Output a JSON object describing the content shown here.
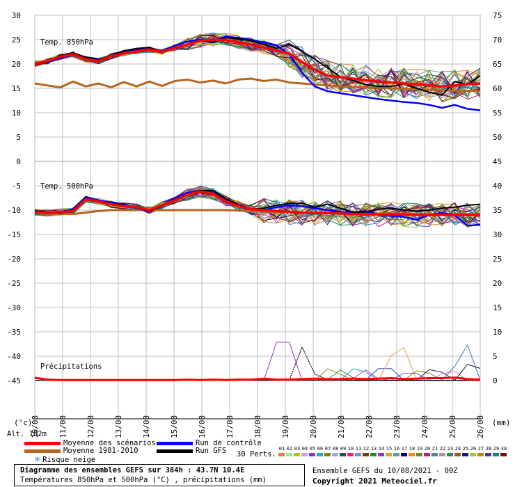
{
  "chart_data": {
    "type": "line",
    "title": "Diagramme des ensembles GEFS sur 384h : 43.7N 10.4E",
    "subtitle": "Températures 850hPa et 500hPa (°C) , précipitations (mm)",
    "x_labels": [
      "10/08",
      "11/08",
      "12/08",
      "13/08",
      "14/08",
      "15/08",
      "16/08",
      "17/08",
      "18/08",
      "19/08",
      "20/08",
      "21/08",
      "22/08",
      "23/08",
      "24/08",
      "25/08",
      "26/08"
    ],
    "x_unit": "(°c)",
    "x_unit_right": "(mm)",
    "y_left_ticks": [
      "30",
      "25",
      "20",
      "15",
      "10",
      "5",
      "0",
      "-5",
      "-10",
      "-15",
      "-20",
      "-25",
      "-30",
      "-35",
      "-40",
      "-45"
    ],
    "y_right_ticks": [
      "75",
      "70",
      "65",
      "60",
      "55",
      "50",
      "45",
      "40",
      "35",
      "30",
      "25",
      "20",
      "15",
      "10",
      "5",
      "0"
    ],
    "y_left_range": [
      -45,
      30
    ],
    "panel_labels": {
      "t850": "Temp. 850hPa",
      "t500": "Temp. 500hPa",
      "precip": "Précipitations"
    },
    "altitude": "Alt. 102m",
    "mean_850": [
      20.0,
      20.6,
      21.5,
      22.0,
      21.0,
      20.6,
      21.6,
      22.2,
      22.6,
      23.0,
      22.5,
      23.3,
      24.0,
      24.8,
      25.0,
      24.9,
      24.5,
      24.0,
      23.4,
      22.8,
      22.1,
      20.4,
      18.8,
      17.6,
      17.3,
      17.0,
      16.7,
      16.4,
      16.2,
      16.0,
      15.8,
      15.6,
      15.4,
      15.6,
      15.9,
      16.0
    ],
    "clim_850": [
      16.0,
      15.6,
      15.2,
      16.4,
      15.4,
      16.0,
      15.2,
      16.3,
      15.4,
      16.4,
      15.5,
      16.5,
      16.8,
      16.2,
      16.6,
      16.0,
      16.8,
      17.0,
      16.5,
      16.8,
      16.2,
      16.0,
      15.8,
      15.6,
      15.4,
      15.3,
      15.2,
      15.1,
      15.0,
      14.9,
      14.8,
      14.7,
      14.6,
      14.5,
      14.5,
      14.5
    ],
    "control_850": [
      20.0,
      20.4,
      21.2,
      22.0,
      21.4,
      21.0,
      21.5,
      22.6,
      23.0,
      23.0,
      22.6,
      23.8,
      24.6,
      25.0,
      24.8,
      25.6,
      25.4,
      25.0,
      24.4,
      23.8,
      22.0,
      18.2,
      15.4,
      14.4,
      14.0,
      13.6,
      13.2,
      12.8,
      12.5,
      12.2,
      12.0,
      11.6,
      11.0,
      11.6,
      10.8,
      10.5
    ],
    "gfs_850": [
      20.0,
      20.4,
      21.8,
      22.3,
      21.4,
      20.8,
      21.8,
      22.7,
      23.2,
      23.4,
      22.6,
      23.2,
      24.0,
      24.8,
      24.4,
      25.4,
      25.2,
      24.8,
      24.0,
      23.2,
      24.0,
      22.6,
      21.0,
      19.2,
      17.4,
      16.6,
      15.8,
      15.4,
      15.4,
      15.9,
      15.0,
      14.2,
      13.6,
      16.4,
      15.8,
      17.6
    ],
    "mean_500": [
      -10.4,
      -10.6,
      -10.4,
      -10.2,
      -7.8,
      -8.2,
      -8.8,
      -9.2,
      -9.4,
      -10.0,
      -9.0,
      -8.0,
      -6.8,
      -6.2,
      -6.6,
      -8.2,
      -9.2,
      -9.8,
      -10.0,
      -10.2,
      -10.4,
      -10.5,
      -10.6,
      -10.6,
      -10.7,
      -10.8,
      -10.8,
      -10.9,
      -10.9,
      -10.9,
      -11.0,
      -11.0,
      -11.0,
      -11.0,
      -11.0,
      -11.0
    ],
    "clim_500": [
      -10.6,
      -10.7,
      -10.8,
      -10.8,
      -10.5,
      -10.2,
      -10.0,
      -10.0,
      -10.0,
      -10.0,
      -10.0,
      -10.0,
      -10.0,
      -10.0,
      -10.0,
      -10.0,
      -10.1,
      -10.2,
      -10.3,
      -10.4,
      -10.4,
      -10.5,
      -10.5,
      -10.6,
      -10.6,
      -10.6,
      -10.7,
      -10.7,
      -10.7,
      -10.7,
      -10.8,
      -10.8,
      -10.8,
      -10.8,
      -10.8,
      -10.8
    ],
    "control_500": [
      -10.2,
      -10.6,
      -10.4,
      -9.8,
      -7.4,
      -8.0,
      -8.4,
      -8.8,
      -9.6,
      -10.2,
      -9.0,
      -7.6,
      -6.4,
      -6.0,
      -6.4,
      -7.8,
      -9.0,
      -9.8,
      -10.0,
      -9.4,
      -9.0,
      -9.2,
      -9.6,
      -10.0,
      -10.4,
      -10.6,
      -10.2,
      -11.0,
      -11.2,
      -11.4,
      -12.0,
      -11.0,
      -10.6,
      -11.0,
      -13.2,
      -13.0
    ],
    "gfs_500": [
      -10.2,
      -10.4,
      -10.6,
      -10.0,
      -7.6,
      -8.2,
      -8.6,
      -9.0,
      -9.4,
      -10.2,
      -9.2,
      -7.8,
      -6.8,
      -6.0,
      -6.0,
      -7.6,
      -9.0,
      -9.8,
      -9.6,
      -9.0,
      -8.6,
      -8.6,
      -9.4,
      -8.8,
      -9.6,
      -10.4,
      -10.4,
      -9.8,
      -9.6,
      -10.0,
      -10.2,
      -10.0,
      -9.6,
      -9.4,
      -9.0,
      -8.8
    ],
    "mean_precip": [
      0.6,
      0.2,
      0.1,
      0.1,
      0.1,
      0.1,
      0.1,
      0.1,
      0.1,
      0.1,
      0.1,
      0.1,
      0.2,
      0.1,
      0.2,
      0.1,
      0.2,
      0.2,
      0.4,
      0.2,
      0.2,
      0.3,
      0.4,
      0.3,
      0.3,
      0.4,
      0.3,
      0.4,
      0.5,
      0.3,
      0.4,
      0.5,
      0.5,
      0.6,
      0.3,
      0.2
    ],
    "gfs_precip": [
      0.4,
      0.1,
      0.1,
      0.1,
      0.1,
      0.1,
      0.1,
      0.1,
      0.1,
      0.1,
      0.1,
      0.1,
      0.1,
      0.1,
      0.1,
      0.1,
      0.1,
      0.1,
      0.1,
      0.1,
      0.1,
      0.1,
      0.1,
      0.1,
      0.1,
      0.0,
      0.0,
      0.0,
      0.0,
      0.0,
      0.0,
      0.0,
      0.0,
      0.0,
      0.0,
      0.0
    ],
    "gfs_precip_peak": {
      "x_index": 21.3,
      "value": 11.0
    },
    "precip_spikes": [
      {
        "x_index": 19.5,
        "value": 13.5,
        "color": "#9b30c8"
      },
      {
        "x_index": 23.3,
        "value": 3.2,
        "color": "#8b8b00"
      },
      {
        "x_index": 24.1,
        "value": 2.4,
        "color": "#2f8f2f"
      },
      {
        "x_index": 25.4,
        "value": 3.6,
        "color": "#20a0b0"
      },
      {
        "x_index": 26.0,
        "value": 2.2,
        "color": "#c040c0"
      },
      {
        "x_index": 27.5,
        "value": 4.2,
        "color": "#2050c0"
      },
      {
        "x_index": 28.6,
        "value": 10.2,
        "color": "#e0a040"
      },
      {
        "x_index": 29.5,
        "value": 2.6,
        "color": "#6a5acd"
      },
      {
        "x_index": 30.4,
        "value": 3.0,
        "color": "#808000"
      },
      {
        "x_index": 31.4,
        "value": 3.4,
        "color": "#202060"
      },
      {
        "x_index": 32.6,
        "value": 2.8,
        "color": "#ff69b4"
      },
      {
        "x_index": 33.8,
        "value": 8.8,
        "color": "#4169e1"
      },
      {
        "x_index": 34.4,
        "value": 5.0,
        "color": "#111111"
      }
    ],
    "ensemble_colors": [
      "#e87e3a",
      "#4a9f4a",
      "#b0c020",
      "#3050c8",
      "#8a2be2",
      "#20b2aa",
      "#808000",
      "#d2691e",
      "#2f4f4f",
      "#ff1493",
      "#6495ed",
      "#7b3f00",
      "#228b22",
      "#9932cc",
      "#daa520",
      "#5f9ea0",
      "#000080",
      "#ff8c00",
      "#6b8e23",
      "#c71585",
      "#4682b4",
      "#bc8f8f",
      "#2e8b57",
      "#a0522d",
      "#191970",
      "#9acd32",
      "#b8860b",
      "#483d8b",
      "#008b8b",
      "#8b0000"
    ]
  },
  "legend": {
    "mean": "Moyenne des scénarios",
    "clim": "Moyenne 1981-2010",
    "snow": "Risque neige",
    "control": "Run de contrôle",
    "gfs": "Run GFS",
    "mean_color": "#ff0000",
    "clim_color": "#b5651d",
    "control_color": "#0000ff",
    "gfs_color": "#000000"
  },
  "perturbations": {
    "label": "30 Perts.",
    "numbers": [
      "01",
      "02",
      "03",
      "04",
      "05",
      "06",
      "07",
      "08",
      "09",
      "10",
      "11",
      "12",
      "13",
      "14",
      "15",
      "16",
      "17",
      "18",
      "19",
      "20",
      "21",
      "22",
      "23",
      "24",
      "25",
      "26",
      "27",
      "28",
      "29",
      "30"
    ],
    "colors": [
      "#e87e3a",
      "#90ee90",
      "#b0c020",
      "#d3a0d3",
      "#8a2be2",
      "#20b2aa",
      "#808000",
      "#a0a0ff",
      "#2f4f4f",
      "#ff1493",
      "#6495ed",
      "#7b3f00",
      "#228b22",
      "#9932cc",
      "#daa520",
      "#5f9ea0",
      "#000080",
      "#ff8c00",
      "#6b8e23",
      "#c71585",
      "#4682b4",
      "#bc8f8f",
      "#2e8b57",
      "#a0522d",
      "#191970",
      "#9acd32",
      "#b8860b",
      "#483d8b",
      "#008b8b",
      "#8b0000"
    ]
  },
  "info": {
    "line1": "Diagramme des ensembles GEFS sur 384h : 43.7N 10.4E",
    "line2": "Températures 850hPa et 500hPa (°C) , précipitations (mm)"
  },
  "footer": {
    "run": "Ensemble GEFS du 10/08/2021 - 00Z",
    "copyright": "Copyright 2021 Meteociel.fr"
  }
}
